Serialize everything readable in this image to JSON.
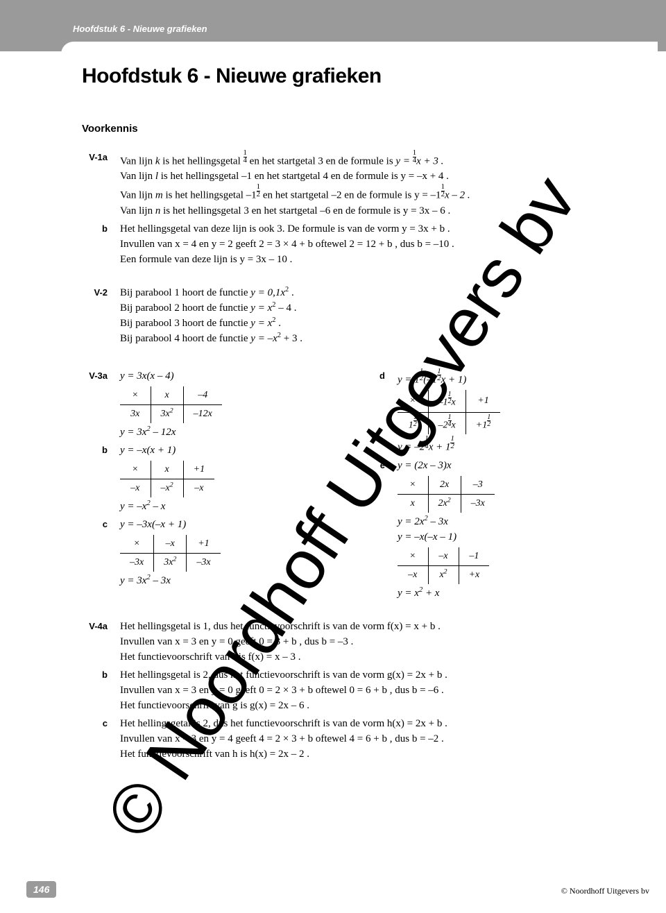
{
  "running_head": "Hoofdstuk 6 - Nieuwe grafieken",
  "title": "Hoofdstuk 6 - Nieuwe grafieken",
  "section": "Voorkennis",
  "page_number": "146",
  "copyright": "© Noordhoff Uitgevers bv",
  "watermark_text": "© Noordhoff Uitgevers bv",
  "colors": {
    "header_bg": "#9a9a9a",
    "text": "#000000",
    "page_bg": "#ffffff"
  },
  "labels": {
    "v1a": "V-1a",
    "b": "b",
    "v2": "V-2",
    "v3a": "V-3a",
    "c": "c",
    "d": "d",
    "e": "e",
    "v4a": "V-4a"
  },
  "v1a": {
    "l1": "Van lijn k is het hellingsgetal ¼ en het startgetal 3 en de formule is y = ¼x + 3 .",
    "l1_pre": "Van lijn ",
    "l1_var1": "k",
    "l1_mid": " is het hellingsgetal ",
    "l1_frac_n": "1",
    "l1_frac_d": "4",
    "l1_mid2": " en het startgetal 3 en de formule is ",
    "l1_eq_pre": "y = ",
    "l1_eq_frac_n": "1",
    "l1_eq_frac_d": "4",
    "l1_eq_post": "x + 3 .",
    "l2_pre": "Van lijn ",
    "l2_var": "l",
    "l2_rest": " is het hellingsgetal –1 en het startgetal 4 en de formule is  y = –x + 4 .",
    "l3_pre": "Van lijn ",
    "l3_var": "m",
    "l3_mid": " is het hellingsgetal  –1",
    "l3_frac_n": "1",
    "l3_frac_d": "2",
    "l3_mid2": " en het startgetal –2 en de formule is  y = –1",
    "l3_eq_frac_n": "1",
    "l3_eq_frac_d": "2",
    "l3_eq_post": "x – 2 .",
    "l4_pre": "Van lijn ",
    "l4_var": "n",
    "l4_rest": " is het hellingsgetal 3 en het startgetal –6 en de formule is  y = 3x – 6 ."
  },
  "v1b": {
    "l1": "Het hellingsgetal van deze lijn is ook 3. De formule is van de vorm  y = 3x + b .",
    "l2": "Invullen van  x = 4  en  y = 2  geeft  2 = 3 × 4 + b  oftewel  2 = 12 + b , dus  b = –10 .",
    "l3": "Een formule van deze lijn is  y = 3x – 10 ."
  },
  "v2": {
    "l1_pre": "Bij parabool 1 hoort de functie  ",
    "l1_eq": "y = 0,1x",
    "l1_sup": "2",
    "l1_post": " .",
    "l2_pre": "Bij parabool 2 hoort de functie  ",
    "l2_eq": "y = x",
    "l2_sup": "2",
    "l2_post": " – 4 .",
    "l3_pre": "Bij parabool 3 hoort de functie  ",
    "l3_eq": "y = x",
    "l3_sup": "2",
    "l3_post": " .",
    "l4_pre": "Bij parabool 4 hoort de functie  ",
    "l4_eq": "y = –x",
    "l4_sup": "2",
    "l4_post": " + 3 ."
  },
  "v3a": {
    "head": "y = 3x(x – 4)",
    "t": {
      "h1": "×",
      "h2": "x",
      "h3": "–4",
      "r1": "3x",
      "c1": "3x",
      "c1sup": "2",
      "c2": "–12x"
    },
    "res_pre": "y = 3x",
    "res_sup": "2",
    "res_post": " – 12x"
  },
  "v3b": {
    "head": "y = –x(x + 1)",
    "t": {
      "h1": "×",
      "h2": "x",
      "h3": "+1",
      "r1": "–x",
      "c1": "–x",
      "c1sup": "2",
      "c2": "–x"
    },
    "res_pre": "y = –x",
    "res_sup": "2",
    "res_post": " – x"
  },
  "v3c": {
    "head": "y = –3x(–x + 1)",
    "t": {
      "h1": "×",
      "h2": "–x",
      "h3": "+1",
      "r1": "–3x",
      "c1": "3x",
      "c1sup": "2",
      "c2": "–3x"
    },
    "res_pre": "y = 3x",
    "res_sup": "2",
    "res_post": " – 3x"
  },
  "v3d": {
    "head_pre": "y = 1",
    "head_frac_n": "1",
    "head_frac_d": "2",
    "head_post": "(–1",
    "head_frac2_n": "1",
    "head_frac2_d": "2",
    "head_post2": "x + 1)",
    "t": {
      "h1": "×",
      "h2_pre": "–1",
      "h2_n": "1",
      "h2_d": "2",
      "h2_post": "x",
      "h3": "+1",
      "r1_pre": "1",
      "r1_n": "1",
      "r1_d": "2",
      "c1_pre": "–2",
      "c1_n": "1",
      "c1_d": "4",
      "c1_post": "x",
      "c2_pre": "+1",
      "c2_n": "1",
      "c2_d": "2"
    },
    "res_pre": "y = –2",
    "res_n": "1",
    "res_d": "4",
    "res_mid": "x + 1",
    "res2_n": "1",
    "res2_d": "2"
  },
  "v3e": {
    "head": "y = (2x – 3)x",
    "t": {
      "h1": "×",
      "h2": "2x",
      "h3": "–3",
      "r1": "x",
      "c1": "2x",
      "c1sup": "2",
      "c2": "–3x"
    },
    "res_pre": "y = 2x",
    "res_sup": "2",
    "res_post": " – 3x",
    "extra": "y = –x(–x – 1)",
    "t2": {
      "h1": "×",
      "h2": "–x",
      "h3": "–1",
      "r1": "–x",
      "c1": "x",
      "c1sup": "2",
      "c2": "+x"
    },
    "res2_pre": "y = x",
    "res2_sup": "2",
    "res2_post": " + x"
  },
  "v4a": {
    "l1": "Het hellingsgetal is 1, dus het functievoorschrift is van de vorm  f(x) = x + b .",
    "l2": "Invullen van  x = 3  en  y = 0  geeft  0 = 3 + b , dus  b = –3 .",
    "l3": "Het functievoorschrift van f is  f(x) = x – 3 ."
  },
  "v4b": {
    "l1": "Het hellingsgetal is 2, dus het functievoorschrift is van de vorm  g(x) = 2x + b .",
    "l2": "Invullen van  x = 3  en  y = 0  geeft  0 = 2 × 3 + b  oftewel  0 = 6 + b , dus  b = –6 .",
    "l3": "Het functievoorschrift van g is  g(x) = 2x – 6 ."
  },
  "v4c": {
    "l1": "Het hellingsgetal is 2, dus het functievoorschrift is van de vorm  h(x) = 2x + b .",
    "l2": "Invullen van  x = 3  en  y = 4  geeft  4 = 2 × 3 + b  oftewel  4 = 6 + b , dus  b = –2 .",
    "l3": "Het functievoorschrift van h is  h(x) = 2x – 2 ."
  }
}
